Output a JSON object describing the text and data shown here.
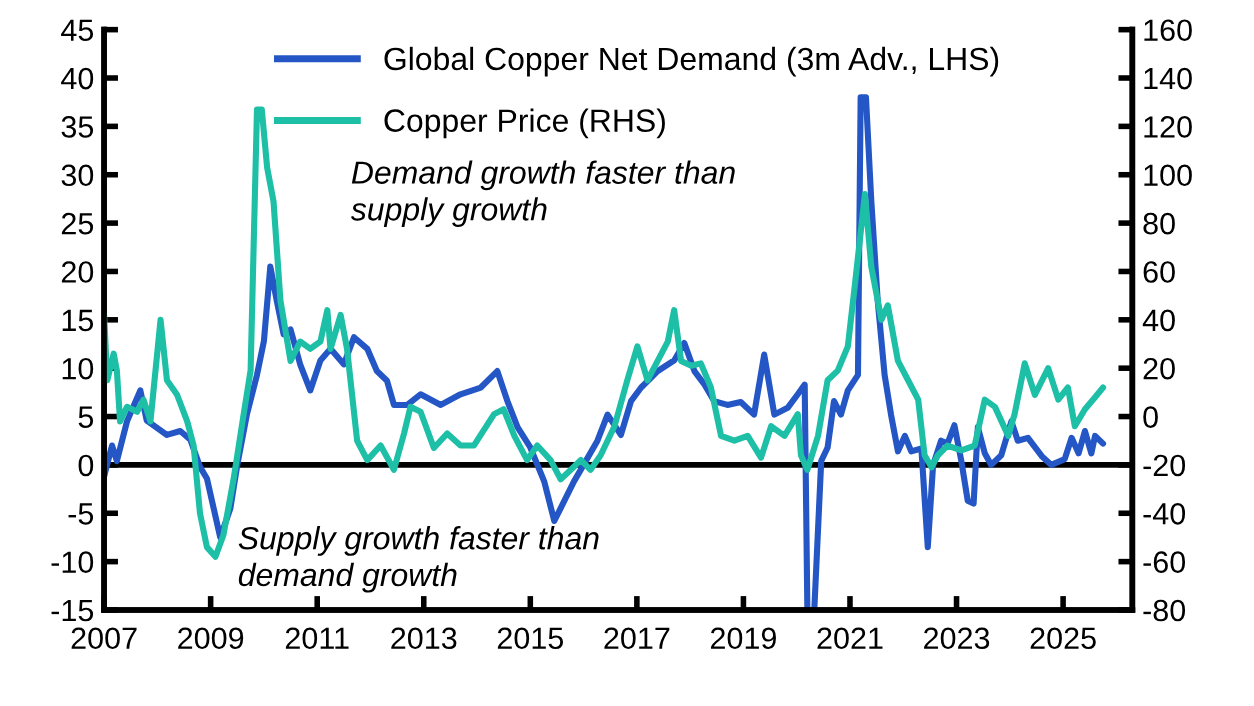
{
  "chart_data": {
    "type": "line",
    "xlim": [
      2007,
      2026.3
    ],
    "xticks": [
      2007,
      2009,
      2011,
      2013,
      2015,
      2017,
      2019,
      2021,
      2023,
      2025
    ],
    "ylim": [
      -15,
      45
    ],
    "yticks": [
      -15,
      -10,
      -5,
      0,
      5,
      10,
      15,
      20,
      25,
      30,
      35,
      40,
      45
    ],
    "y2lim": [
      -80,
      160
    ],
    "y2ticks": [
      -80,
      -60,
      -40,
      -20,
      0,
      20,
      40,
      60,
      80,
      100,
      120,
      140,
      160
    ],
    "legend": "top",
    "grid": false,
    "ref_lines": [
      {
        "axis": "y",
        "value": 0,
        "color": "#000000"
      }
    ],
    "annotations": [
      "Demand growth faster than\nsupply growth",
      "Supply growth faster than\ndemand growth"
    ],
    "series": [
      {
        "name": "Global Copper Net Demand (3m Adv., LHS)",
        "color": "#2457c5",
        "axis": "y",
        "x": [
          2007.0,
          2007.15,
          2007.24,
          2007.43,
          2007.68,
          2007.8,
          2008.18,
          2008.43,
          2008.62,
          2008.8,
          2008.93,
          2009.18,
          2009.37,
          2009.5,
          2009.68,
          2009.87,
          2010.0,
          2010.12,
          2010.24,
          2010.37,
          2010.5,
          2010.68,
          2010.87,
          2011.06,
          2011.25,
          2011.5,
          2011.69,
          2011.94,
          2012.12,
          2012.31,
          2012.44,
          2012.69,
          2012.94,
          2013.32,
          2013.69,
          2014.07,
          2014.38,
          2014.57,
          2014.76,
          2015.0,
          2015.26,
          2015.45,
          2015.64,
          2015.82,
          2016.0,
          2016.26,
          2016.45,
          2016.7,
          2016.89,
          2017.08,
          2017.39,
          2017.7,
          2017.89,
          2018.08,
          2018.27,
          2018.45,
          2018.7,
          2018.95,
          2019.2,
          2019.39,
          2019.58,
          2019.83,
          2020.02,
          2020.15,
          2020.2,
          2020.33,
          2020.46,
          2020.58,
          2020.7,
          2020.83,
          2020.96,
          2021.15,
          2021.2,
          2021.3,
          2021.4,
          2021.52,
          2021.65,
          2021.77,
          2021.9,
          2022.03,
          2022.15,
          2022.34,
          2022.46,
          2022.56,
          2022.71,
          2022.83,
          2022.96,
          2023.09,
          2023.21,
          2023.32,
          2023.4,
          2023.53,
          2023.65,
          2023.84,
          2024.03,
          2024.15,
          2024.34,
          2024.6,
          2024.78,
          2025.03,
          2025.16,
          2025.29,
          2025.41,
          2025.53,
          2025.6,
          2025.75
        ],
        "values": [
          -1.2,
          2,
          0.4,
          4.5,
          7.7,
          4.6,
          3.1,
          3.5,
          2.6,
          -0.2,
          -1.4,
          -7.5,
          -4.5,
          0,
          5.2,
          9.3,
          12.8,
          20.5,
          17,
          13.5,
          14,
          10.4,
          7.7,
          10.8,
          12,
          10.4,
          13.2,
          12,
          9.7,
          8.7,
          6.2,
          6.2,
          7.3,
          6.2,
          7.3,
          8,
          9.7,
          6.6,
          3.9,
          1.8,
          -1.7,
          -5.8,
          -3.7,
          -1.7,
          0,
          2.5,
          5.2,
          3.1,
          6.6,
          8,
          9.7,
          10.8,
          12.6,
          9.7,
          8.3,
          6.6,
          6.2,
          6.5,
          5.2,
          11.4,
          5.2,
          5.9,
          7.3,
          8.3,
          -15,
          -15,
          0.4,
          1.8,
          6.6,
          5.2,
          7.7,
          9.3,
          38,
          38,
          27.3,
          17,
          9.3,
          5.2,
          1.4,
          3,
          1.4,
          1.7,
          -8.5,
          0,
          2.5,
          2.2,
          4.1,
          0.4,
          -3.7,
          -4,
          3.9,
          1.2,
          0,
          1,
          4.5,
          2.5,
          2.8,
          0.9,
          0,
          0.6,
          2.8,
          1.2,
          3.5,
          1.2,
          3,
          2.2
        ]
      },
      {
        "name": "Copper Price (RHS)",
        "color": "#1dbfa6",
        "axis": "y2",
        "x": [
          2007.0,
          2007.06,
          2007.18,
          2007.24,
          2007.3,
          2007.43,
          2007.62,
          2007.74,
          2007.87,
          2008.06,
          2008.18,
          2008.37,
          2008.56,
          2008.68,
          2008.8,
          2008.93,
          2009.09,
          2009.24,
          2009.43,
          2009.62,
          2009.75,
          2009.87,
          2009.96,
          2010.06,
          2010.18,
          2010.31,
          2010.5,
          2010.68,
          2010.87,
          2011.06,
          2011.19,
          2011.25,
          2011.44,
          2011.56,
          2011.75,
          2011.94,
          2012.19,
          2012.44,
          2012.63,
          2012.75,
          2012.94,
          2013.19,
          2013.44,
          2013.69,
          2013.94,
          2014.32,
          2014.5,
          2014.7,
          2014.94,
          2015.13,
          2015.38,
          2015.57,
          2015.76,
          2015.95,
          2016.13,
          2016.32,
          2016.58,
          2016.82,
          2017.01,
          2017.2,
          2017.39,
          2017.58,
          2017.7,
          2017.83,
          2018.02,
          2018.2,
          2018.39,
          2018.58,
          2018.83,
          2019.08,
          2019.33,
          2019.52,
          2019.77,
          2020.02,
          2020.08,
          2020.2,
          2020.4,
          2020.58,
          2020.77,
          2020.96,
          2021.09,
          2021.28,
          2021.4,
          2021.59,
          2021.71,
          2021.9,
          2022.09,
          2022.28,
          2022.4,
          2022.53,
          2022.65,
          2022.83,
          2023.09,
          2023.34,
          2023.53,
          2023.72,
          2023.97,
          2024.09,
          2024.28,
          2024.47,
          2024.72,
          2024.91,
          2025.09,
          2025.22,
          2025.41,
          2025.6,
          2025.75
        ],
        "values": [
          42,
          15,
          26,
          19,
          -2,
          4,
          2,
          7,
          -2,
          40,
          15,
          9,
          -2,
          -12,
          -40,
          -54,
          -58,
          -49,
          -26,
          1,
          19,
          127,
          127,
          103,
          89,
          48,
          23,
          31,
          28,
          31,
          44,
          28,
          42,
          28,
          -10,
          -18,
          -12,
          -22,
          -7,
          4,
          2,
          -13,
          -7,
          -12,
          -12,
          1,
          3,
          -8,
          -18,
          -12,
          -18,
          -26,
          -22,
          -18,
          -22,
          -16,
          -4,
          15,
          29,
          15,
          23,
          31,
          44,
          23,
          21,
          22,
          12,
          -8,
          -10,
          -8,
          -17,
          -4,
          -8,
          1,
          -16,
          -22,
          -8,
          15,
          19,
          29,
          54,
          92,
          62,
          40,
          46,
          23,
          15,
          7,
          -16,
          -21,
          -16,
          -12,
          -14,
          -12,
          7,
          4,
          -8,
          1,
          22,
          9,
          20,
          7,
          12,
          -4,
          3,
          8,
          12
        ]
      }
    ]
  }
}
